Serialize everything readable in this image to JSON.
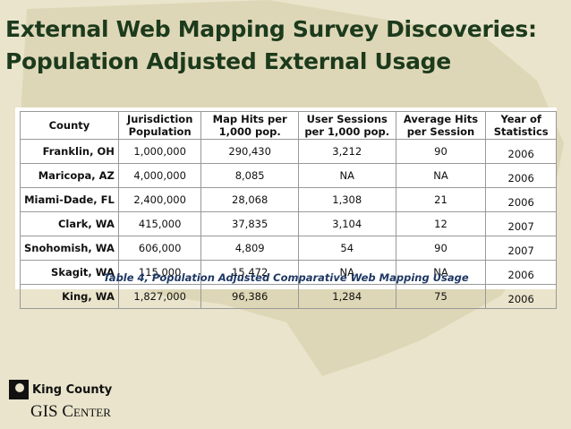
{
  "header": {
    "title_lines": [
      "External Web Mapping Survey Discoveries:",
      "Population Adjusted External Usage"
    ]
  },
  "table": {
    "columns": [
      [
        "County"
      ],
      [
        "Jurisdiction",
        "Population"
      ],
      [
        "Map Hits per",
        "1,000 pop."
      ],
      [
        "User Sessions",
        "per 1,000 pop."
      ],
      [
        "Average Hits",
        "per Session"
      ],
      [
        "Year of",
        "Statistics"
      ]
    ],
    "rows": [
      [
        "Franklin, OH",
        "1,000,000",
        "290,430",
        "3,212",
        "90",
        "2006"
      ],
      [
        "Maricopa, AZ",
        "4,000,000",
        "8,085",
        "NA",
        "NA",
        "2006"
      ],
      [
        "Miami-Dade, FL",
        "2,400,000",
        "28,068",
        "1,308",
        "21",
        "2006"
      ],
      [
        "Clark, WA",
        "415,000",
        "37,835",
        "3,104",
        "12",
        "2007"
      ],
      [
        "Snohomish, WA",
        "606,000",
        "4,809",
        "54",
        "90",
        "2007"
      ],
      [
        "Skagit, WA",
        "115,000",
        "15,472",
        "NA",
        "NA",
        "2006"
      ],
      [
        "King, WA",
        "1,827,000",
        "96,386",
        "1,284",
        "75",
        "2006"
      ]
    ],
    "caption": "Table 4, Population Adjusted Comparative Web Mapping Usage"
  },
  "logo": {
    "line1": "King County",
    "line2": "GIS Center"
  }
}
